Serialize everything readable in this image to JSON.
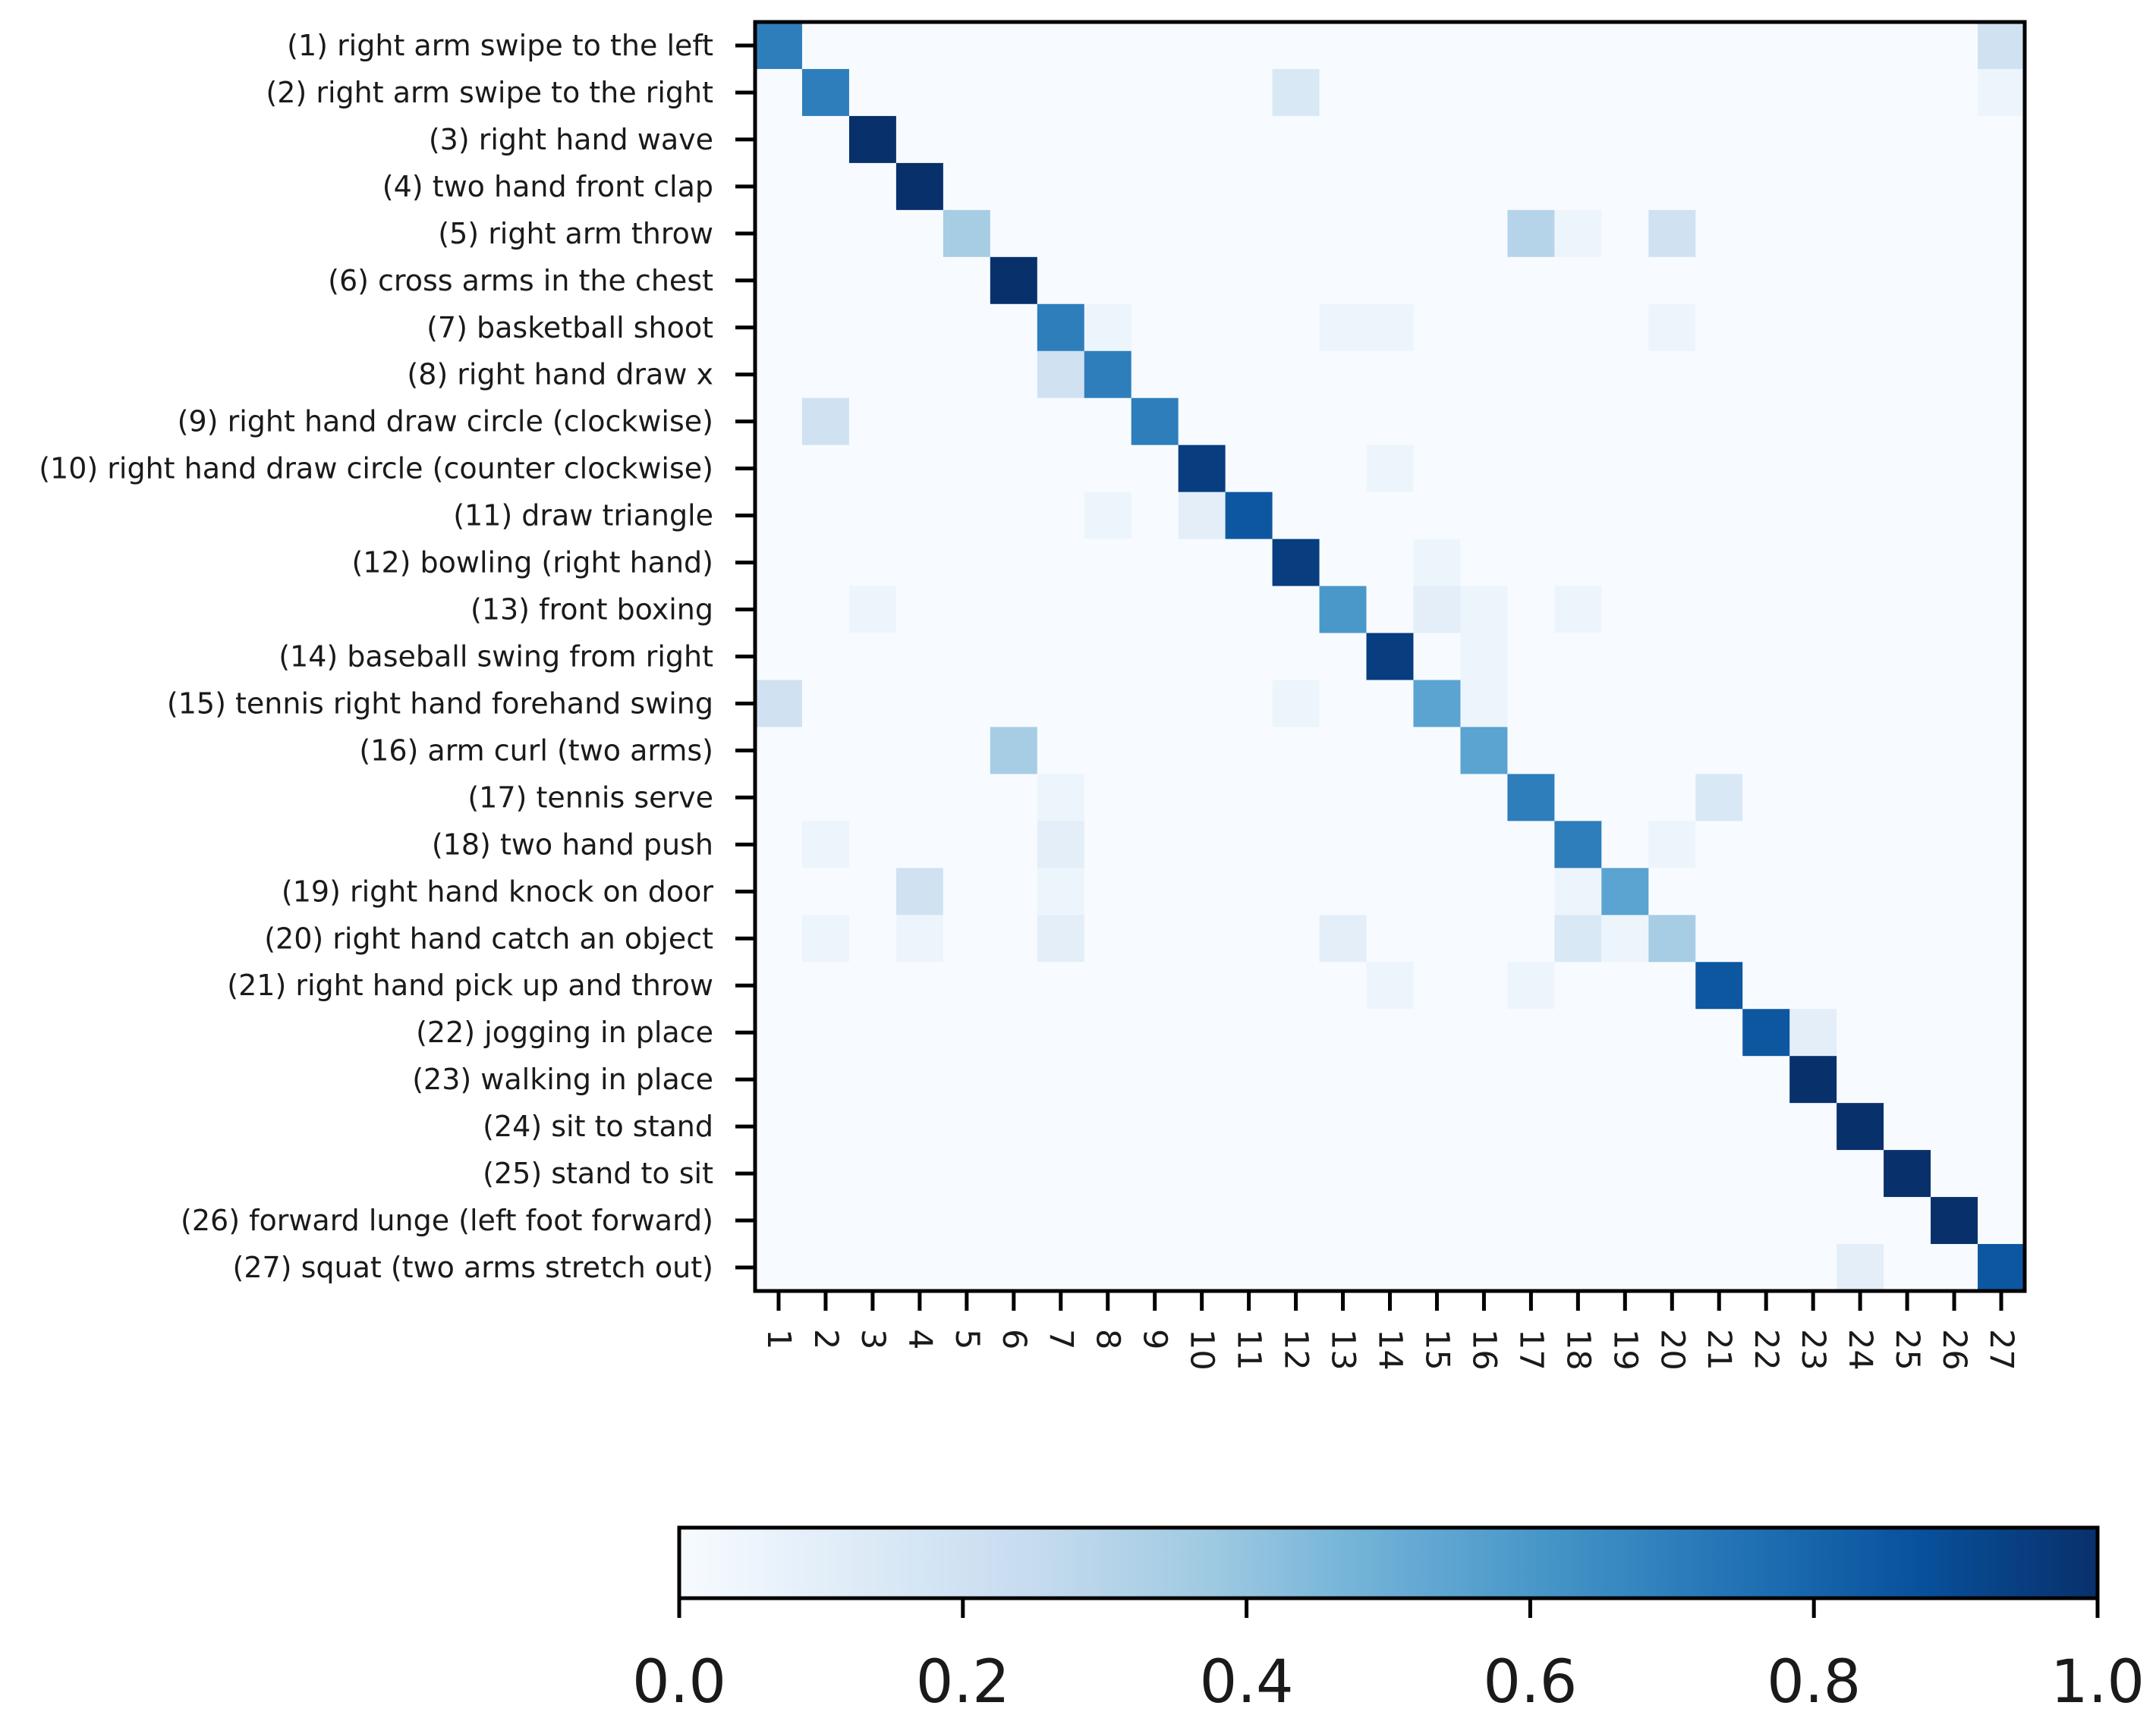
{
  "chart_data": {
    "type": "heatmap",
    "title": "",
    "xlabel": "",
    "ylabel": "",
    "row_labels": [
      "(1) right arm swipe to the left",
      "(2) right arm swipe to the right",
      "(3) right hand wave",
      "(4) two hand front clap",
      "(5) right arm throw",
      "(6) cross arms in the chest",
      "(7) basketball shoot",
      "(8) right hand draw x",
      "(9) right hand draw circle (clockwise)",
      "(10) right hand draw circle (counter clockwise)",
      "(11) draw triangle",
      "(12) bowling (right hand)",
      "(13) front boxing",
      "(14) baseball swing from right",
      "(15) tennis right hand forehand swing",
      "(16) arm curl (two arms)",
      "(17) tennis serve",
      "(18) two hand push",
      "(19) right hand knock on door",
      "(20) right hand catch an object",
      "(21) right hand pick up and throw",
      "(22) jogging in place",
      "(23) walking in place",
      "(24) sit to stand",
      "(25) stand to sit",
      "(26) forward lunge (left foot forward)",
      "(27) squat (two arms stretch out)"
    ],
    "column_labels": [
      "1",
      "2",
      "3",
      "4",
      "5",
      "6",
      "7",
      "8",
      "9",
      "10",
      "11",
      "12",
      "13",
      "14",
      "15",
      "16",
      "17",
      "18",
      "19",
      "20",
      "21",
      "22",
      "23",
      "24",
      "25",
      "26",
      "27"
    ],
    "value_range": [
      0.0,
      1.0
    ],
    "colormap": [
      "#f7fbff",
      "#deebf7",
      "#c6dbef",
      "#9ecae1",
      "#6baed6",
      "#4292c6",
      "#2171b5",
      "#08519c",
      "#08306b"
    ],
    "colorbar": {
      "orientation": "horizontal",
      "placement": "bottom",
      "ticks": [
        0.0,
        0.2,
        0.4,
        0.6,
        0.8,
        1.0
      ],
      "tick_labels": [
        "0.0",
        "0.2",
        "0.4",
        "0.6",
        "0.8",
        "1.0"
      ]
    },
    "off_diagonal_cells": [
      {
        "row": 1,
        "col": 27,
        "value": 0.2
      },
      {
        "row": 2,
        "col": 12,
        "value": 0.15
      },
      {
        "row": 2,
        "col": 27,
        "value": 0.05
      },
      {
        "row": 5,
        "col": 17,
        "value": 0.3
      },
      {
        "row": 5,
        "col": 18,
        "value": 0.05
      },
      {
        "row": 5,
        "col": 20,
        "value": 0.2
      },
      {
        "row": 7,
        "col": 8,
        "value": 0.05
      },
      {
        "row": 7,
        "col": 13,
        "value": 0.05
      },
      {
        "row": 7,
        "col": 14,
        "value": 0.05
      },
      {
        "row": 7,
        "col": 20,
        "value": 0.05
      },
      {
        "row": 8,
        "col": 7,
        "value": 0.2
      },
      {
        "row": 9,
        "col": 2,
        "value": 0.2
      },
      {
        "row": 10,
        "col": 14,
        "value": 0.05
      },
      {
        "row": 11,
        "col": 8,
        "value": 0.05
      },
      {
        "row": 11,
        "col": 10,
        "value": 0.1
      },
      {
        "row": 12,
        "col": 15,
        "value": 0.05
      },
      {
        "row": 13,
        "col": 3,
        "value": 0.05
      },
      {
        "row": 13,
        "col": 15,
        "value": 0.1
      },
      {
        "row": 13,
        "col": 16,
        "value": 0.05
      },
      {
        "row": 13,
        "col": 18,
        "value": 0.05
      },
      {
        "row": 14,
        "col": 16,
        "value": 0.05
      },
      {
        "row": 15,
        "col": 1,
        "value": 0.2
      },
      {
        "row": 15,
        "col": 12,
        "value": 0.05
      },
      {
        "row": 15,
        "col": 16,
        "value": 0.05
      },
      {
        "row": 16,
        "col": 6,
        "value": 0.35
      },
      {
        "row": 17,
        "col": 7,
        "value": 0.05
      },
      {
        "row": 17,
        "col": 21,
        "value": 0.15
      },
      {
        "row": 18,
        "col": 2,
        "value": 0.05
      },
      {
        "row": 18,
        "col": 7,
        "value": 0.1
      },
      {
        "row": 18,
        "col": 20,
        "value": 0.05
      },
      {
        "row": 19,
        "col": 4,
        "value": 0.2
      },
      {
        "row": 19,
        "col": 7,
        "value": 0.05
      },
      {
        "row": 19,
        "col": 18,
        "value": 0.05
      },
      {
        "row": 20,
        "col": 2,
        "value": 0.05
      },
      {
        "row": 20,
        "col": 4,
        "value": 0.05
      },
      {
        "row": 20,
        "col": 7,
        "value": 0.1
      },
      {
        "row": 20,
        "col": 13,
        "value": 0.1
      },
      {
        "row": 20,
        "col": 18,
        "value": 0.15
      },
      {
        "row": 20,
        "col": 19,
        "value": 0.05
      },
      {
        "row": 21,
        "col": 14,
        "value": 0.05
      },
      {
        "row": 21,
        "col": 17,
        "value": 0.05
      },
      {
        "row": 22,
        "col": 23,
        "value": 0.1
      },
      {
        "row": 27,
        "col": 24,
        "value": 0.1
      }
    ],
    "diagonal_values": [
      0.7,
      0.7,
      1.0,
      1.0,
      0.35,
      1.0,
      0.7,
      0.7,
      0.7,
      0.95,
      0.85,
      0.95,
      0.6,
      0.95,
      0.55,
      0.55,
      0.7,
      0.7,
      0.55,
      0.35,
      0.85,
      0.85,
      1.0,
      1.0,
      1.0,
      1.0,
      0.85
    ]
  }
}
